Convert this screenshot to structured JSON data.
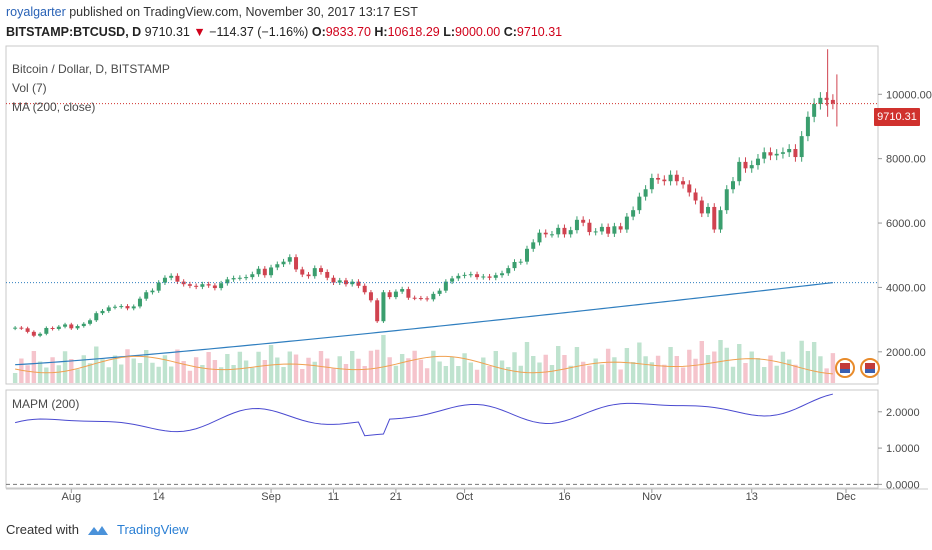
{
  "header": {
    "user": "royalgarter",
    "published": "published on TradingView.com, November 30, 2017 13:17 EST",
    "symbol": "BITSTAMP:BTCUSD, D",
    "last": "9710.31",
    "change": "−114.37 (−1.16%)",
    "open_label": "O:",
    "open": "9833.70",
    "high_label": "H:",
    "high": "10618.29",
    "low_label": "L:",
    "low": "9000.00",
    "close_label": "C:",
    "close": "9710.31"
  },
  "legend": {
    "main": "Bitcoin / Dollar, D, BITSTAMP",
    "vol": "Vol (7)",
    "ma": "MA (200, close)",
    "mapm": "MAPM (200)"
  },
  "price_tag": "9710.31",
  "footer": {
    "created_with": "Created with",
    "brand": "TradingView"
  },
  "colors": {
    "up": "#3a9e6e",
    "down": "#d0424f",
    "vol_up": "#bfe3cf",
    "vol_down": "#f5c4cc",
    "ma": "#2f7ebf",
    "vol_ma": "#f0a050",
    "mapm": "#4a4ad0",
    "price_line": "#d0312d",
    "ma_line": "#2f7ebf"
  },
  "chart_data": [
    {
      "type": "candlestick",
      "title": "Bitcoin / Dollar, D, BITSTAMP",
      "y_ticks": [
        "10000.00",
        "8000.00",
        "6000.00",
        "4000.00",
        "2000.00"
      ],
      "x_ticks": [
        "Aug",
        "14",
        "Sep",
        "11",
        "21",
        "Oct",
        "16",
        "Nov",
        "13",
        "Dec"
      ],
      "ylim": [
        1000,
        11500
      ],
      "close": [
        2750,
        2730,
        2620,
        2500,
        2560,
        2740,
        2710,
        2780,
        2850,
        2730,
        2800,
        2870,
        2980,
        3200,
        3270,
        3380,
        3400,
        3420,
        3350,
        3410,
        3650,
        3850,
        3900,
        4150,
        4300,
        4360,
        4180,
        4100,
        4050,
        4020,
        4100,
        4060,
        3980,
        4130,
        4250,
        4290,
        4300,
        4320,
        4410,
        4580,
        4380,
        4620,
        4720,
        4800,
        4940,
        4560,
        4400,
        4350,
        4600,
        4480,
        4300,
        4150,
        4220,
        4100,
        4180,
        4050,
        3850,
        3600,
        2950,
        3850,
        3700,
        3870,
        3950,
        3680,
        3670,
        3660,
        3630,
        3800,
        3900,
        4180,
        4280,
        4360,
        4390,
        4410,
        4320,
        4340,
        4300,
        4380,
        4440,
        4600,
        4790,
        4800,
        5200,
        5400,
        5700,
        5650,
        5650,
        5850,
        5650,
        5780,
        6100,
        6010,
        5720,
        5740,
        5880,
        5670,
        5900,
        5800,
        6200,
        6400,
        6820,
        7050,
        7400,
        7350,
        7300,
        7500,
        7300,
        7200,
        6950,
        6700,
        6300,
        6500,
        5800,
        6400,
        7050,
        7300,
        7900,
        7700,
        7800,
        8000,
        8200,
        8100,
        8150,
        8200,
        8300,
        8050,
        8700,
        9300,
        9700,
        9890,
        9825,
        9710
      ],
      "vol_ma_line": true,
      "ma200_line_from_to": [
        1600,
        4150
      ],
      "last_price": 9710.31,
      "ma_value": 4150
    },
    {
      "type": "line",
      "title": "MAPM (200)",
      "y_ticks": [
        "2.0000",
        "1.0000",
        "0.0000"
      ],
      "ylim": [
        -0.1,
        2.6
      ]
    }
  ]
}
